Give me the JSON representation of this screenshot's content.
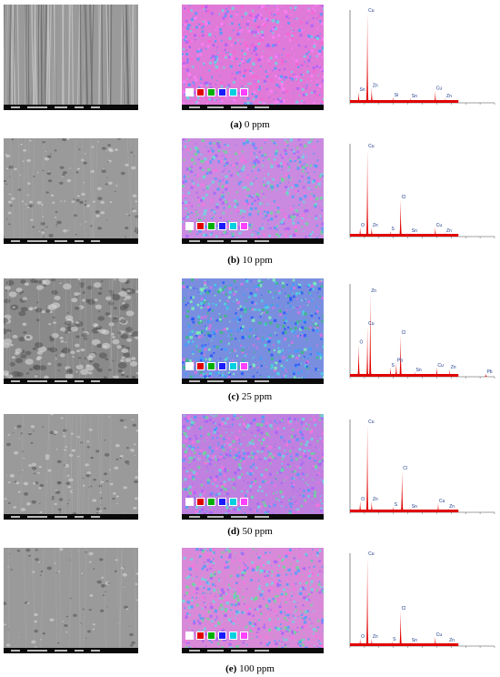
{
  "colors": {
    "peak": "#e00000",
    "axis": "#444444",
    "element_swatches": [
      "#ffffff",
      "#e00000",
      "#00b000",
      "#1a1aff",
      "#00d0e0",
      "#ff40ff"
    ]
  },
  "rows": [
    {
      "caption_letter": "(a)",
      "caption_text": " 0 ppm",
      "sem_style": "scratched",
      "map_tint": "mostly-pink",
      "peaks": [
        {
          "label": "Cu",
          "pos": 0.12,
          "h": 0.98,
          "w": 0.018
        },
        {
          "label": "Sn",
          "pos": 0.06,
          "h": 0.12,
          "w": 0.02
        },
        {
          "label": "Zn",
          "pos": 0.15,
          "h": 0.16,
          "w": 0.02
        },
        {
          "label": "Si",
          "pos": 0.3,
          "h": 0.06,
          "w": 0.02
        },
        {
          "label": "Sn",
          "pos": 0.42,
          "h": 0.05,
          "w": 0.02
        },
        {
          "label": "Cu",
          "pos": 0.59,
          "h": 0.13,
          "w": 0.018
        },
        {
          "label": "Zn",
          "pos": 0.66,
          "h": 0.05,
          "w": 0.018
        }
      ]
    },
    {
      "caption_letter": "(b)",
      "caption_text": " 10 ppm",
      "sem_style": "pitted",
      "map_tint": "pink-green",
      "peaks": [
        {
          "label": "Cu",
          "pos": 0.12,
          "h": 0.95,
          "w": 0.018
        },
        {
          "label": "Cl",
          "pos": 0.35,
          "h": 0.4,
          "w": 0.02
        },
        {
          "label": "O",
          "pos": 0.07,
          "h": 0.1,
          "w": 0.02
        },
        {
          "label": "Zn",
          "pos": 0.15,
          "h": 0.1,
          "w": 0.02
        },
        {
          "label": "S",
          "pos": 0.28,
          "h": 0.06,
          "w": 0.02
        },
        {
          "label": "Sn",
          "pos": 0.42,
          "h": 0.04,
          "w": 0.02
        },
        {
          "label": "Cu",
          "pos": 0.59,
          "h": 0.1,
          "w": 0.018
        },
        {
          "label": "Zn",
          "pos": 0.66,
          "h": 0.04,
          "w": 0.018
        }
      ]
    },
    {
      "caption_letter": "(c)",
      "caption_text": " 25 ppm",
      "sem_style": "corroded",
      "map_tint": "blue-green",
      "peaks": [
        {
          "label": "Zn",
          "pos": 0.14,
          "h": 0.9,
          "w": 0.018
        },
        {
          "label": "Cu",
          "pos": 0.12,
          "h": 0.55,
          "w": 0.016
        },
        {
          "label": "Cl",
          "pos": 0.35,
          "h": 0.45,
          "w": 0.02
        },
        {
          "label": "O",
          "pos": 0.06,
          "h": 0.35,
          "w": 0.02
        },
        {
          "label": "Pb",
          "pos": 0.32,
          "h": 0.15,
          "w": 0.02
        },
        {
          "label": "S",
          "pos": 0.28,
          "h": 0.1,
          "w": 0.02
        },
        {
          "label": "Sn",
          "pos": 0.45,
          "h": 0.05,
          "w": 0.02
        },
        {
          "label": "Cu",
          "pos": 0.6,
          "h": 0.1,
          "w": 0.018
        },
        {
          "label": "Zn",
          "pos": 0.69,
          "h": 0.08,
          "w": 0.018
        },
        {
          "label": "Pb",
          "pos": 0.94,
          "h": 0.03,
          "w": 0.018
        }
      ]
    },
    {
      "caption_letter": "(d)",
      "caption_text": " 50 ppm",
      "sem_style": "pitted",
      "map_tint": "pink-blue",
      "peaks": [
        {
          "label": "Cu",
          "pos": 0.12,
          "h": 0.95,
          "w": 0.018
        },
        {
          "label": "Cl",
          "pos": 0.36,
          "h": 0.45,
          "w": 0.02
        },
        {
          "label": "O",
          "pos": 0.07,
          "h": 0.12,
          "w": 0.02
        },
        {
          "label": "Zn",
          "pos": 0.15,
          "h": 0.12,
          "w": 0.02
        },
        {
          "label": "S",
          "pos": 0.3,
          "h": 0.06,
          "w": 0.02
        },
        {
          "label": "Sn",
          "pos": 0.42,
          "h": 0.04,
          "w": 0.02
        },
        {
          "label": "Cu",
          "pos": 0.61,
          "h": 0.1,
          "w": 0.018
        },
        {
          "label": "Zn",
          "pos": 0.68,
          "h": 0.04,
          "w": 0.018
        }
      ]
    },
    {
      "caption_letter": "(e)",
      "caption_text": " 100 ppm",
      "sem_style": "smooth",
      "map_tint": "pink-scratched",
      "peaks": [
        {
          "label": "Cu",
          "pos": 0.12,
          "h": 0.97,
          "w": 0.018
        },
        {
          "label": "Cl",
          "pos": 0.35,
          "h": 0.38,
          "w": 0.02
        },
        {
          "label": "O",
          "pos": 0.07,
          "h": 0.08,
          "w": 0.02
        },
        {
          "label": "Zn",
          "pos": 0.15,
          "h": 0.08,
          "w": 0.02
        },
        {
          "label": "S",
          "pos": 0.29,
          "h": 0.05,
          "w": 0.02
        },
        {
          "label": "Sn",
          "pos": 0.42,
          "h": 0.04,
          "w": 0.02
        },
        {
          "label": "Cu",
          "pos": 0.59,
          "h": 0.1,
          "w": 0.018
        },
        {
          "label": "Zn",
          "pos": 0.68,
          "h": 0.04,
          "w": 0.018
        }
      ]
    }
  ]
}
